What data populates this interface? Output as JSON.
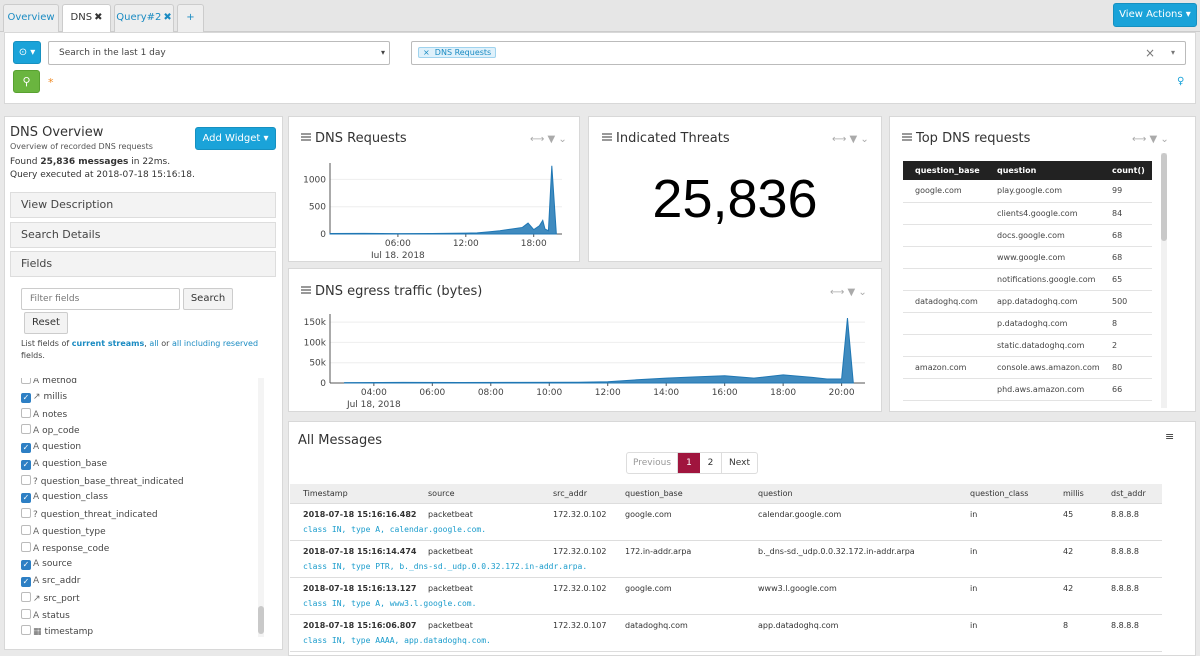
{
  "tabs": [
    {
      "label": "Overview",
      "close": ""
    },
    {
      "label": "DNS",
      "close": "✖"
    },
    {
      "label": "Query#2",
      "close": "✖"
    },
    {
      "label": "+",
      "close": ""
    }
  ],
  "view_actions": "View Actions ▾",
  "search": {
    "time_range": "Search in the last 1 day",
    "query_chip": "DNS Requests",
    "query_chip_x": "×",
    "clear": "×",
    "asterisk": "*"
  },
  "sidebar": {
    "title": "DNS Overview",
    "subtitle": "Overview of recorded DNS requests",
    "add_widget": "Add Widget ▾",
    "found_prefix": "Found ",
    "found_count": "25,836 messages",
    "found_suffix": " in 22ms.",
    "executed": "Query executed at 2018-07-18 15:16:18.",
    "view_description": "View Description",
    "search_details": "Search Details",
    "fields_label": "Fields",
    "filter_placeholder": "Filter fields",
    "search_button": "Search",
    "reset_button": "Reset",
    "list_prefix": "List fields of ",
    "current_streams": "current streams",
    "sep1": ", ",
    "all": "all",
    "sep2": " or ",
    "all_reserved": "all including reserved",
    "fields_word": "fields.",
    "fields": [
      {
        "name": "method",
        "checked": false,
        "icon": "A"
      },
      {
        "name": "millis",
        "checked": true,
        "icon": "↗"
      },
      {
        "name": "notes",
        "checked": false,
        "icon": "A"
      },
      {
        "name": "op_code",
        "checked": false,
        "icon": "A"
      },
      {
        "name": "question",
        "checked": true,
        "icon": "A"
      },
      {
        "name": "question_base",
        "checked": true,
        "icon": "A"
      },
      {
        "name": "question_base_threat_indicated",
        "checked": false,
        "icon": "?"
      },
      {
        "name": "question_class",
        "checked": true,
        "icon": "A"
      },
      {
        "name": "question_threat_indicated",
        "checked": false,
        "icon": "?"
      },
      {
        "name": "question_type",
        "checked": false,
        "icon": "A"
      },
      {
        "name": "response_code",
        "checked": false,
        "icon": "A"
      },
      {
        "name": "source",
        "checked": true,
        "icon": "A"
      },
      {
        "name": "src_addr",
        "checked": true,
        "icon": "A"
      },
      {
        "name": "src_port",
        "checked": false,
        "icon": "↗"
      },
      {
        "name": "status",
        "checked": false,
        "icon": "A"
      },
      {
        "name": "timestamp",
        "checked": false,
        "icon": "▦"
      }
    ]
  },
  "widgets": {
    "dns_requests": {
      "title": "DNS Requests",
      "ctrls": "⟷ ▼ ⌄"
    },
    "threats": {
      "title": "Indicated Threats",
      "value": "25,836",
      "ctrls": "⟷ ▼ ⌄"
    },
    "egress": {
      "title": "DNS egress traffic (bytes)",
      "ctrls": "⟷ ▼ ⌄"
    },
    "top_dns": {
      "title": "Top DNS requests",
      "ctrls": "⟷ ▼ ⌄",
      "headers": [
        "question_base",
        "question",
        "count()"
      ],
      "rows": [
        [
          "google.com",
          "play.google.com",
          "99"
        ],
        [
          "",
          "clients4.google.com",
          "84"
        ],
        [
          "",
          "docs.google.com",
          "68"
        ],
        [
          "",
          "www.google.com",
          "68"
        ],
        [
          "",
          "notifications.google.com",
          "65"
        ],
        [
          "datadoghq.com",
          "app.datadoghq.com",
          "500"
        ],
        [
          "",
          "p.datadoghq.com",
          "8"
        ],
        [
          "",
          "static.datadoghq.com",
          "2"
        ],
        [
          "amazon.com",
          "console.aws.amazon.com",
          "80"
        ],
        [
          "",
          "phd.aws.amazon.com",
          "66"
        ]
      ]
    }
  },
  "chart_data": [
    {
      "type": "area",
      "title": "DNS Requests",
      "x_ticks": [
        "06:00",
        "12:00",
        "18:00"
      ],
      "x_sublabel": "Jul 18, 2018",
      "y_ticks": [
        "0",
        "500",
        "1000"
      ],
      "ylim": [
        0,
        1300
      ],
      "x": [
        0,
        3,
        6,
        9,
        12,
        13,
        14,
        15,
        16,
        17,
        17.5,
        18,
        18.5,
        18.8,
        19,
        19.3,
        19.6,
        20
      ],
      "values": [
        10,
        12,
        8,
        10,
        15,
        20,
        40,
        60,
        90,
        120,
        200,
        80,
        150,
        250,
        90,
        60,
        1250,
        0
      ]
    },
    {
      "type": "area",
      "title": "DNS egress traffic (bytes)",
      "x_ticks": [
        "04:00",
        "06:00",
        "08:00",
        "10:00",
        "12:00",
        "14:00",
        "16:00",
        "18:00",
        "20:00"
      ],
      "x_sublabel": "Jul 18, 2018",
      "y_ticks": [
        "0",
        "50k",
        "100k",
        "150k"
      ],
      "ylim": [
        0,
        170000
      ],
      "x": [
        3,
        5,
        7,
        9,
        11,
        12,
        13,
        14,
        15,
        16,
        17,
        18,
        19,
        19.5,
        20,
        20.2,
        20.4
      ],
      "values": [
        1000,
        1500,
        1200,
        1500,
        2000,
        3000,
        8000,
        12000,
        15000,
        18000,
        12000,
        20000,
        14000,
        10000,
        10000,
        160000,
        0
      ]
    }
  ],
  "messages": {
    "title": "All Messages",
    "menu": "≡",
    "pagination": {
      "previous": "Previous",
      "page1": "1",
      "page2": "2",
      "next": "Next"
    },
    "headers": [
      "Timestamp",
      "source",
      "src_addr",
      "question_base",
      "question",
      "question_class",
      "millis",
      "dst_addr"
    ],
    "rows": [
      {
        "cells": [
          "2018-07-18 15:16:16.482",
          "packetbeat",
          "172.32.0.102",
          "google.com",
          "calendar.google.com",
          "in",
          "45",
          "8.8.8.8"
        ],
        "message": "class IN, type A, calendar.google.com."
      },
      {
        "cells": [
          "2018-07-18 15:16:14.474",
          "packetbeat",
          "172.32.0.102",
          "172.in-addr.arpa",
          "b._dns-sd._udp.0.0.32.172.in-addr.arpa",
          "in",
          "42",
          "8.8.8.8"
        ],
        "message": "class IN, type PTR, b._dns-sd._udp.0.0.32.172.in-addr.arpa."
      },
      {
        "cells": [
          "2018-07-18 15:16:13.127",
          "packetbeat",
          "172.32.0.102",
          "google.com",
          "www3.l.google.com",
          "in",
          "42",
          "8.8.8.8"
        ],
        "message": "class IN, type A, www3.l.google.com."
      },
      {
        "cells": [
          "2018-07-18 15:16:06.807",
          "packetbeat",
          "172.32.0.107",
          "datadoghq.com",
          "app.datadoghq.com",
          "in",
          "8",
          "8.8.8.8"
        ],
        "message": "class IN, type AAAA, app.datadoghq.com."
      }
    ]
  }
}
